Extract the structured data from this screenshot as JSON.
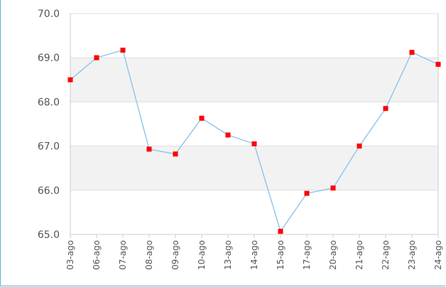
{
  "chart_data": {
    "type": "line",
    "title": "",
    "xlabel": "",
    "ylabel": "",
    "categories": [
      "03-ago",
      "06-ago",
      "07-ago",
      "08-ago",
      "09-ago",
      "10-ago",
      "13-ago",
      "14-ago",
      "15-ago",
      "17-ago",
      "20-ago",
      "21-ago",
      "22-ago",
      "23-ago",
      "24-ago"
    ],
    "series": [
      {
        "values": [
          68.5,
          69.0,
          69.17,
          66.93,
          66.82,
          67.63,
          67.25,
          67.05,
          65.07,
          65.93,
          66.05,
          67.0,
          67.85,
          69.12,
          68.85
        ]
      }
    ],
    "ylim": [
      65.0,
      70.0
    ],
    "yticks": [
      "70.0",
      "69.0",
      "68.0",
      "67.0",
      "66.0",
      "65.0"
    ],
    "grid": true,
    "band_color": "#f2f2f2",
    "line_color": "#8ec4ec",
    "marker_color": "#ff0000",
    "axis_color": "#cccccc",
    "frame_color": "#5ab4d6"
  }
}
